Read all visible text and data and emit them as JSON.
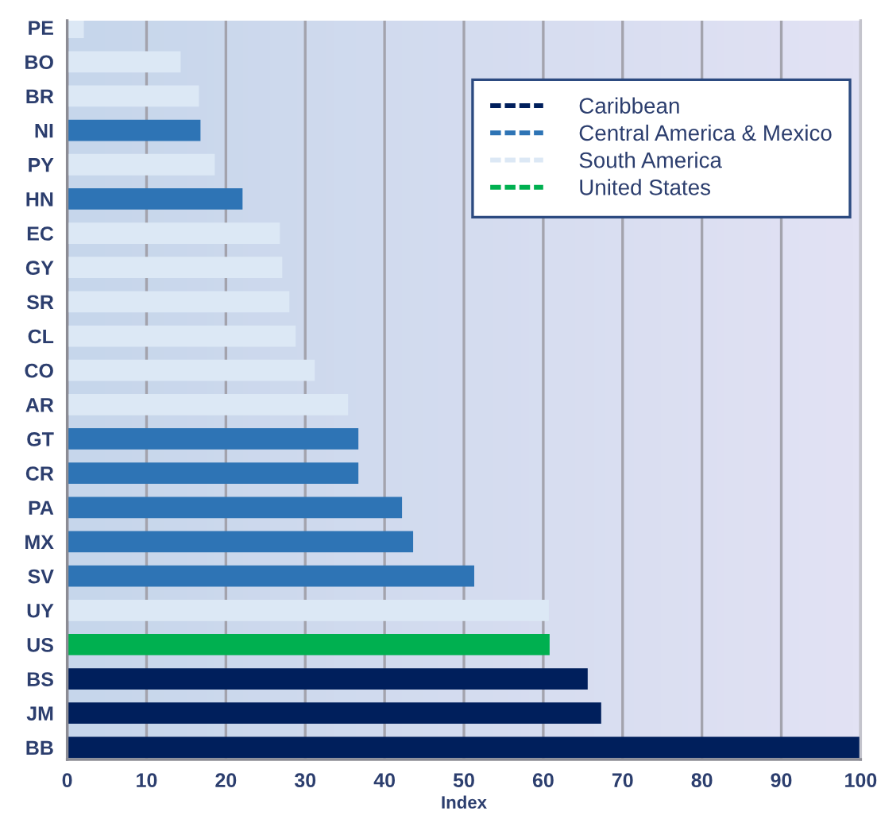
{
  "chart_data": {
    "type": "bar",
    "orientation": "horizontal",
    "stacked": true,
    "categories": [
      "PE",
      "BO",
      "BR",
      "NI",
      "PY",
      "HN",
      "EC",
      "GY",
      "SR",
      "CL",
      "CO",
      "AR",
      "GT",
      "CR",
      "PA",
      "MX",
      "SV",
      "UY",
      "US",
      "BS",
      "JM",
      "BB"
    ],
    "series": [
      {
        "name": "Caribbean",
        "color": "#001f5c",
        "values": [
          null,
          null,
          null,
          null,
          null,
          null,
          null,
          null,
          null,
          null,
          null,
          null,
          null,
          null,
          null,
          null,
          null,
          null,
          null,
          65.6,
          67.3,
          100
        ]
      },
      {
        "name": "Central America & Mexico",
        "color": "#2e74b5",
        "values": [
          null,
          null,
          null,
          16.8,
          null,
          22.1,
          null,
          null,
          null,
          null,
          null,
          null,
          36.7,
          36.7,
          42.2,
          43.6,
          51.3,
          null,
          null,
          null,
          null,
          null
        ]
      },
      {
        "name": "South America",
        "color": "#dce8f5",
        "values": [
          2.1,
          14.3,
          16.6,
          null,
          18.6,
          null,
          26.8,
          27.1,
          28.0,
          28.8,
          31.2,
          35.4,
          null,
          null,
          null,
          null,
          null,
          60.7,
          null,
          null,
          null,
          null
        ]
      },
      {
        "name": "United States",
        "color": "#00b050",
        "values": [
          null,
          null,
          null,
          null,
          null,
          null,
          null,
          null,
          null,
          null,
          null,
          null,
          null,
          null,
          null,
          null,
          null,
          null,
          60.8,
          null,
          null,
          null
        ]
      }
    ],
    "xlabel": "Index",
    "xlim": [
      0,
      100
    ],
    "xticks": [
      0,
      10,
      20,
      30,
      40,
      50,
      60,
      70,
      80,
      90,
      100
    ],
    "grid": "x",
    "legend": "top right"
  }
}
